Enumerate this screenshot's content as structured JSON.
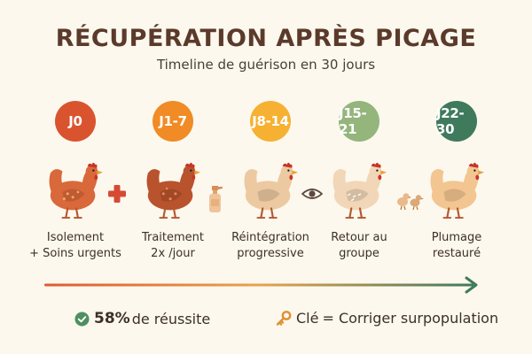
{
  "header": {
    "title": "RÉCUPÉRATION APRÈS PICAGE",
    "subtitle": "Timeline de guérison en 30 jours"
  },
  "stages": [
    {
      "day": "J0",
      "color": "#d9542e",
      "hen_color": "#d9683a",
      "caption_line1": "Isolement",
      "caption_line2": "+ Soins urgents"
    },
    {
      "day": "J1-7",
      "color": "#f08b25",
      "hen_color": "#b8532d",
      "caption_line1": "Traitement",
      "caption_line2": "2x /jour"
    },
    {
      "day": "J8-14",
      "color": "#f6b132",
      "hen_color": "#ecc9a1",
      "caption_line1": "Réintégration",
      "caption_line2": "progressive"
    },
    {
      "day": "J15-21",
      "color": "#94b57c",
      "hen_color": "#f1d6b7",
      "caption_line1": "Retour au",
      "caption_line2": "groupe"
    },
    {
      "day": "J22-30",
      "color": "#3f7a5d",
      "hen_color": "#f3c590",
      "caption_line1": "Plumage",
      "caption_line2": "restauré"
    }
  ],
  "between_icons": [
    "plus-icon",
    "spray-bottle-icon",
    "eye-icon",
    "chicks-icon"
  ],
  "footer": {
    "success_value": "58%",
    "success_text": "de réussite",
    "key_label": "Clé",
    "key_text": "= Corriger surpopulation"
  },
  "colors": {
    "title": "#5b3a2b",
    "arrow_start": "#e05a2f",
    "arrow_end": "#3f7a5d",
    "check": "#4f8f62",
    "key": "#e0902e"
  }
}
